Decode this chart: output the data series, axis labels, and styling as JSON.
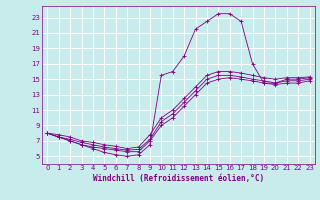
{
  "xlabel": "Windchill (Refroidissement éolien,°C)",
  "bg_color": "#c8ecec",
  "grid_color": "#ffffff",
  "line_color": "#800080",
  "xlim": [
    -0.5,
    23.5
  ],
  "ylim": [
    4.0,
    24.5
  ],
  "xticks": [
    0,
    1,
    2,
    3,
    4,
    5,
    6,
    7,
    8,
    9,
    10,
    11,
    12,
    13,
    14,
    15,
    16,
    17,
    18,
    19,
    20,
    21,
    22,
    23
  ],
  "yticks": [
    5,
    7,
    9,
    11,
    13,
    15,
    17,
    19,
    21,
    23
  ],
  "curve1_x": [
    0,
    1,
    2,
    3,
    4,
    5,
    6,
    7,
    8,
    9,
    10,
    11,
    12,
    13,
    14,
    15,
    16,
    17,
    18,
    19,
    20,
    21,
    22,
    23
  ],
  "curve1_y": [
    8.0,
    7.5,
    7.0,
    6.5,
    6.0,
    5.5,
    5.2,
    5.0,
    5.2,
    6.5,
    15.5,
    16.0,
    18.0,
    21.5,
    22.5,
    23.5,
    23.5,
    22.5,
    17.0,
    14.5,
    14.5,
    14.8,
    14.8,
    15.0
  ],
  "curve2_x": [
    0,
    1,
    2,
    3,
    4,
    5,
    6,
    7,
    8,
    9,
    10,
    11,
    12,
    13,
    14,
    15,
    16,
    17,
    18,
    19,
    20,
    21,
    22,
    23
  ],
  "curve2_y": [
    8.0,
    7.5,
    7.0,
    6.5,
    6.2,
    6.0,
    5.8,
    5.6,
    5.6,
    7.0,
    9.0,
    10.0,
    11.5,
    13.0,
    14.5,
    15.0,
    15.2,
    15.0,
    14.8,
    14.5,
    14.3,
    14.5,
    14.5,
    14.8
  ],
  "curve3_x": [
    0,
    1,
    2,
    3,
    4,
    5,
    6,
    7,
    8,
    9,
    10,
    11,
    12,
    13,
    14,
    15,
    16,
    17,
    18,
    19,
    20,
    21,
    22,
    23
  ],
  "curve3_y": [
    8.0,
    7.5,
    7.2,
    6.8,
    6.5,
    6.2,
    6.0,
    5.8,
    5.9,
    7.2,
    9.5,
    10.5,
    12.0,
    13.5,
    15.0,
    15.5,
    15.5,
    15.3,
    15.0,
    14.8,
    14.5,
    15.0,
    15.0,
    15.2
  ],
  "curve4_x": [
    0,
    1,
    2,
    3,
    4,
    5,
    6,
    7,
    8,
    9,
    10,
    11,
    12,
    13,
    14,
    15,
    16,
    17,
    18,
    19,
    20,
    21,
    22,
    23
  ],
  "curve4_y": [
    8.0,
    7.8,
    7.5,
    7.0,
    6.8,
    6.5,
    6.3,
    6.0,
    6.2,
    7.8,
    10.0,
    11.0,
    12.5,
    14.0,
    15.5,
    16.0,
    16.0,
    15.8,
    15.5,
    15.2,
    15.0,
    15.2,
    15.2,
    15.3
  ]
}
